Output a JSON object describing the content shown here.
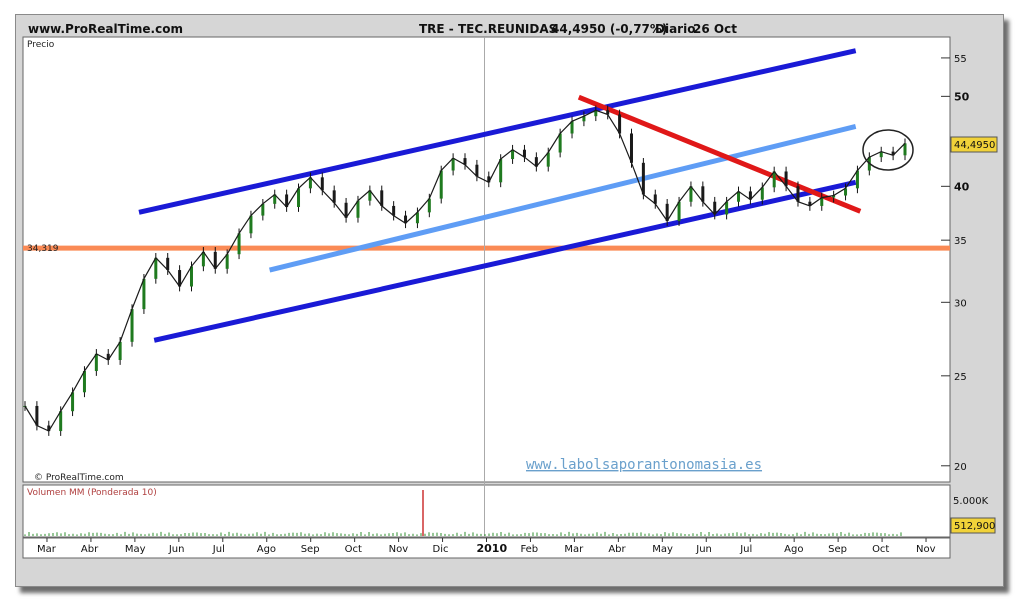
{
  "header": {
    "site": "www.ProRealTime.com",
    "instrument": "TRE - TEC.REUNIDAS",
    "quote": "44,4950 (-0,77%)",
    "period": "Diario",
    "date": "26 Oct"
  },
  "watermark": "www.labolsaporantonomasia.es",
  "colors": {
    "dark_channel": "#1a1ad6",
    "light_channel": "#5f9df5",
    "red_trend": "#e01818",
    "support": "#fa8a55",
    "highlight": "#f2d638",
    "candle_up": "#1f7a1f",
    "volume": "#2f8f2f"
  },
  "chart_data": [
    {
      "type": "line",
      "title": "TRE - TEC.REUNIDAS",
      "ylabel": "Precio",
      "y_scale": "log",
      "ylim": [
        19.5,
        57.5
      ],
      "yticks": [
        20,
        25,
        30,
        35,
        40,
        50,
        55
      ],
      "last_price_label": "44,4950",
      "reference_level": {
        "value": 34.319,
        "label": "34,319"
      },
      "footer_logo": "© ProRealTime.com",
      "x_axis_labels": [
        "Mar",
        "Abr",
        "May",
        "Jun",
        "Jul",
        "Ago",
        "Sep",
        "Oct",
        "Nov",
        "Dic",
        "2010",
        "Feb",
        "Mar",
        "Abr",
        "May",
        "Jun",
        "Jul",
        "Ago",
        "Sep",
        "Oct",
        "Nov"
      ],
      "x_axis_bold_label": "2010",
      "series": [
        {
          "values": [
            23.2,
            22.1,
            21.8,
            22.9,
            24.0,
            25.3,
            26.4,
            26.0,
            27.2,
            29.5,
            31.8,
            33.5,
            32.5,
            31.2,
            32.8,
            34.0,
            32.6,
            33.8,
            35.6,
            37.2,
            38.3,
            39.2,
            38.0,
            39.8,
            40.9,
            39.6,
            38.4,
            37.0,
            38.6,
            39.6,
            38.1,
            37.2,
            36.5,
            37.5,
            38.8,
            41.6,
            42.9,
            42.2,
            41.0,
            40.4,
            42.8,
            43.8,
            43.0,
            42.0,
            43.5,
            45.6,
            47.0,
            47.6,
            48.3,
            47.8,
            45.6,
            42.4,
            39.2,
            38.3,
            36.7,
            38.5,
            40.0,
            38.5,
            37.3,
            38.5,
            39.5,
            38.7,
            39.9,
            41.5,
            40.0,
            38.5,
            38.1,
            38.9,
            39.1,
            39.8,
            41.6,
            43.0,
            43.6,
            43.2,
            44.5
          ]
        }
      ],
      "trendlines": [
        {
          "name": "upper-channel",
          "from": [
            0.247,
            37.5
          ],
          "to": [
            1.8,
            56.0
          ]
        },
        {
          "name": "lower-channel",
          "from": [
            0.28,
            27.3
          ],
          "to": [
            1.8,
            40.4
          ]
        },
        {
          "name": "mid-channel",
          "from": [
            0.53,
            32.5
          ],
          "to": [
            1.8,
            46.4
          ]
        },
        {
          "name": "red-resistance",
          "from": [
            1.2,
            49.9
          ],
          "to": [
            1.81,
            37.6
          ]
        }
      ]
    },
    {
      "type": "bar",
      "title": "Volumen MM (Ponderada 10)",
      "yticks_label": "5.000K",
      "last_value_label": "512,900",
      "spike_value": 14600,
      "baseline_value": 512.9
    }
  ]
}
